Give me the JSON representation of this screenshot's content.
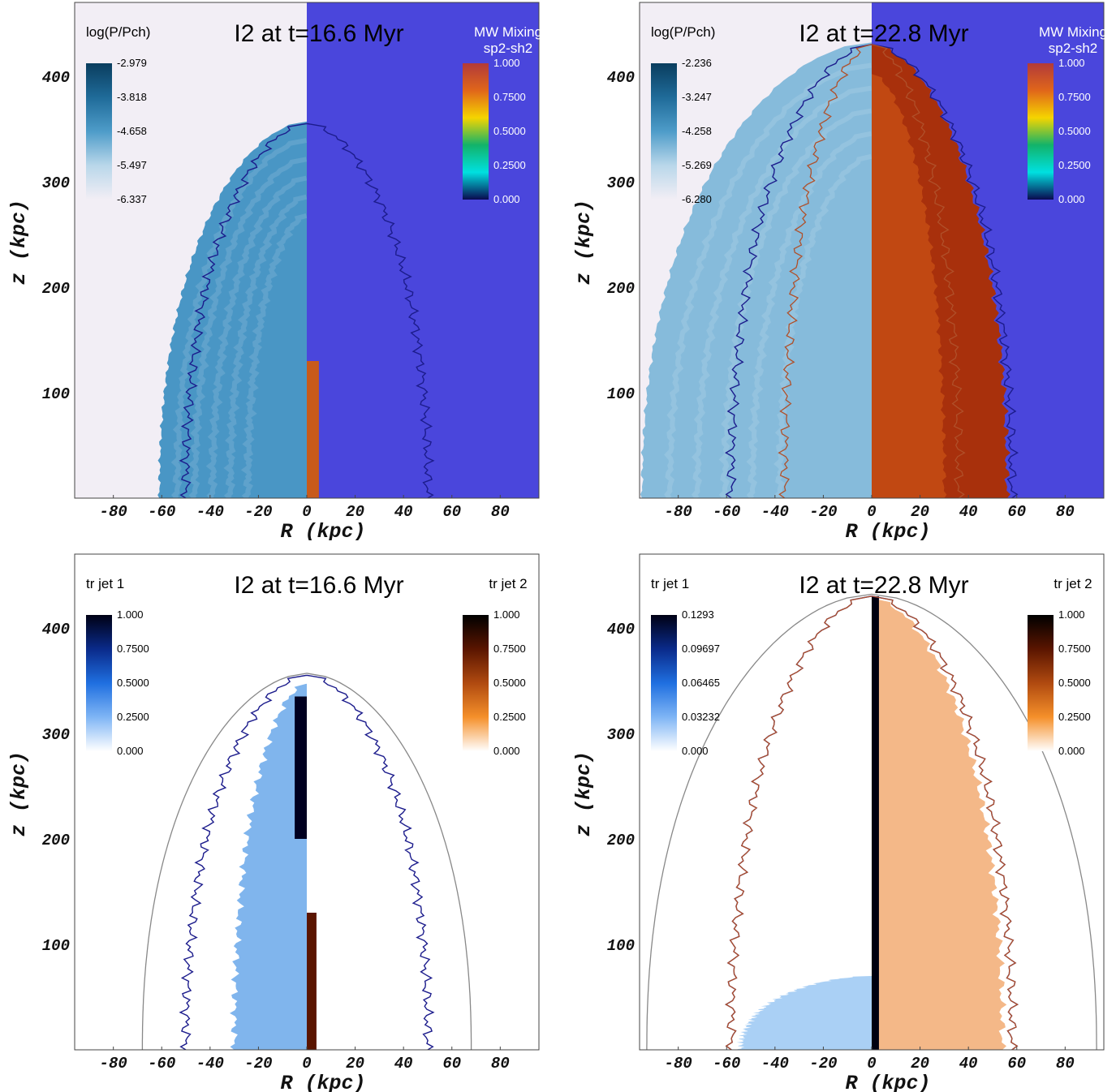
{
  "chart_data": [
    {
      "type": "heatmap",
      "title": "I2 at t=16.6 Myr",
      "xlabel": "R  (kpc)",
      "ylabel": "z  (kpc)",
      "xticks": [
        -80,
        -60,
        -40,
        -20,
        0,
        20,
        40,
        60,
        80
      ],
      "yticks": [
        100,
        200,
        300,
        400
      ],
      "xlim": [
        -96,
        96
      ],
      "ylim": [
        0,
        470
      ],
      "colorbars": [
        {
          "label": "log(P/Pch)",
          "side": "left",
          "ticks": [
            "-2.979",
            "-3.818",
            "-4.658",
            "-5.497",
            "-6.337"
          ],
          "colors": [
            "#0a3d5e",
            "#1f6b99",
            "#4e9cc9",
            "#b9d7ea",
            "#f2eef5"
          ]
        },
        {
          "label": "MW Mixing",
          "sublabel": "sp2-sh2",
          "side": "right",
          "ticks": [
            "1.000",
            "0.7500",
            "0.5000",
            "0.2500",
            "0.000"
          ],
          "colors": [
            "#b23a3a",
            "#e0661a",
            "#f5d400",
            "#12b36a",
            "#00e0e0",
            "#0a0a50"
          ]
        }
      ],
      "colors": {
        "left_bg": "#f2eef5",
        "right_bg": "#4a46dc",
        "cocoon": "#3f90c2",
        "contour_outer": "#1c1c8c",
        "contour_inner": "#b0502a"
      },
      "cocoon_shape": {
        "z_top": 357,
        "r_max": 61,
        "contour_r": 50,
        "inner_r": 4,
        "inner_z_top": 130
      }
    },
    {
      "type": "heatmap",
      "title": "I2 at t=22.8 Myr",
      "xlabel": "R  (kpc)",
      "ylabel": "z  (kpc)",
      "xticks": [
        -80,
        -60,
        -40,
        -20,
        0,
        20,
        40,
        60,
        80
      ],
      "yticks": [
        100,
        200,
        300,
        400
      ],
      "xlim": [
        -96,
        96
      ],
      "ylim": [
        0,
        470
      ],
      "colorbars": [
        {
          "label": "log(P/Pch)",
          "side": "left",
          "ticks": [
            "-2.236",
            "-3.247",
            "-4.258",
            "-5.269",
            "-6.280"
          ],
          "colors": [
            "#0a3d5e",
            "#1f6b99",
            "#4e9cc9",
            "#b9d7ea",
            "#f2eef5"
          ]
        },
        {
          "label": "MW Mixing",
          "sublabel": "sp2-sh2",
          "side": "right",
          "ticks": [
            "1.000",
            "0.7500",
            "0.5000",
            "0.2500",
            "0.000"
          ],
          "colors": [
            "#b23a3a",
            "#e0661a",
            "#f5d400",
            "#12b36a",
            "#00e0e0",
            "#0a0a50"
          ]
        }
      ],
      "colors": {
        "left_bg": "#f2eef5",
        "right_bg": "#4a46dc",
        "cocoon": "#7fb7d9",
        "mixing": "#a8300c",
        "contour_outer": "#1c1c8c",
        "contour_inner": "#b0502a"
      },
      "cocoon_shape": {
        "z_top": 432,
        "r_max": 95,
        "contour_r": 58,
        "inner_r": 36,
        "inner_z_top": 432
      }
    },
    {
      "type": "heatmap",
      "title": "I2 at t=16.6 Myr",
      "xlabel": "R  (kpc)",
      "ylabel": "z  (kpc)",
      "xticks": [
        -80,
        -60,
        -40,
        -20,
        0,
        20,
        40,
        60,
        80
      ],
      "yticks": [
        100,
        200,
        300,
        400
      ],
      "xlim": [
        -96,
        96
      ],
      "ylim": [
        0,
        470
      ],
      "colorbars": [
        {
          "label": "tr jet 1",
          "side": "left",
          "ticks": [
            "1.000",
            "0.7500",
            "0.5000",
            "0.2500",
            "0.000"
          ],
          "colors": [
            "#000014",
            "#0a2a8a",
            "#1f6fe0",
            "#7fb5f5",
            "#ffffff"
          ]
        },
        {
          "label": "tr jet 2",
          "side": "right",
          "ticks": [
            "1.000",
            "0.7500",
            "0.5000",
            "0.2500",
            "0.000"
          ],
          "colors": [
            "#000000",
            "#5a1500",
            "#b04a10",
            "#f5902a",
            "#ffffff"
          ]
        }
      ],
      "colors": {
        "left_bg": "#ffffff",
        "right_bg": "#ffffff",
        "cocoon": "#6aa8ea",
        "contour_outer": "#1c1c8c",
        "contour_inner": "#b0502a",
        "shock": "#888888"
      },
      "cocoon_shape": {
        "z_top": 357,
        "r_max": 68,
        "contour_r": 50,
        "inner_r": 4,
        "inner_z_top": 130
      }
    },
    {
      "type": "heatmap",
      "title": "I2 at t=22.8 Myr",
      "xlabel": "R  (kpc)",
      "ylabel": "z  (kpc)",
      "xticks": [
        -80,
        -60,
        -40,
        -20,
        0,
        20,
        40,
        60,
        80
      ],
      "yticks": [
        100,
        200,
        300,
        400
      ],
      "xlim": [
        -96,
        96
      ],
      "ylim": [
        0,
        470
      ],
      "colorbars": [
        {
          "label": "tr jet 1",
          "side": "left",
          "ticks": [
            "0.1293",
            "0.09697",
            "0.06465",
            "0.03232",
            "0.000"
          ],
          "colors": [
            "#000014",
            "#0a2a8a",
            "#1f6fe0",
            "#7fb5f5",
            "#ffffff"
          ]
        },
        {
          "label": "tr jet 2",
          "side": "right",
          "ticks": [
            "1.000",
            "0.7500",
            "0.5000",
            "0.2500",
            "0.000"
          ],
          "colors": [
            "#000000",
            "#5a1500",
            "#b04a10",
            "#f5902a",
            "#ffffff"
          ]
        }
      ],
      "colors": {
        "left_bg": "#ffffff",
        "right_bg": "#ffffff",
        "cocoon": "#f0a060",
        "contour_outer": "#1c1c8c",
        "contour_inner": "#b0502a",
        "shock": "#888888"
      },
      "cocoon_shape": {
        "z_top": 432,
        "r_max": 93,
        "contour_r": 58,
        "inner_r": 58,
        "inner_z_top": 432
      }
    }
  ]
}
